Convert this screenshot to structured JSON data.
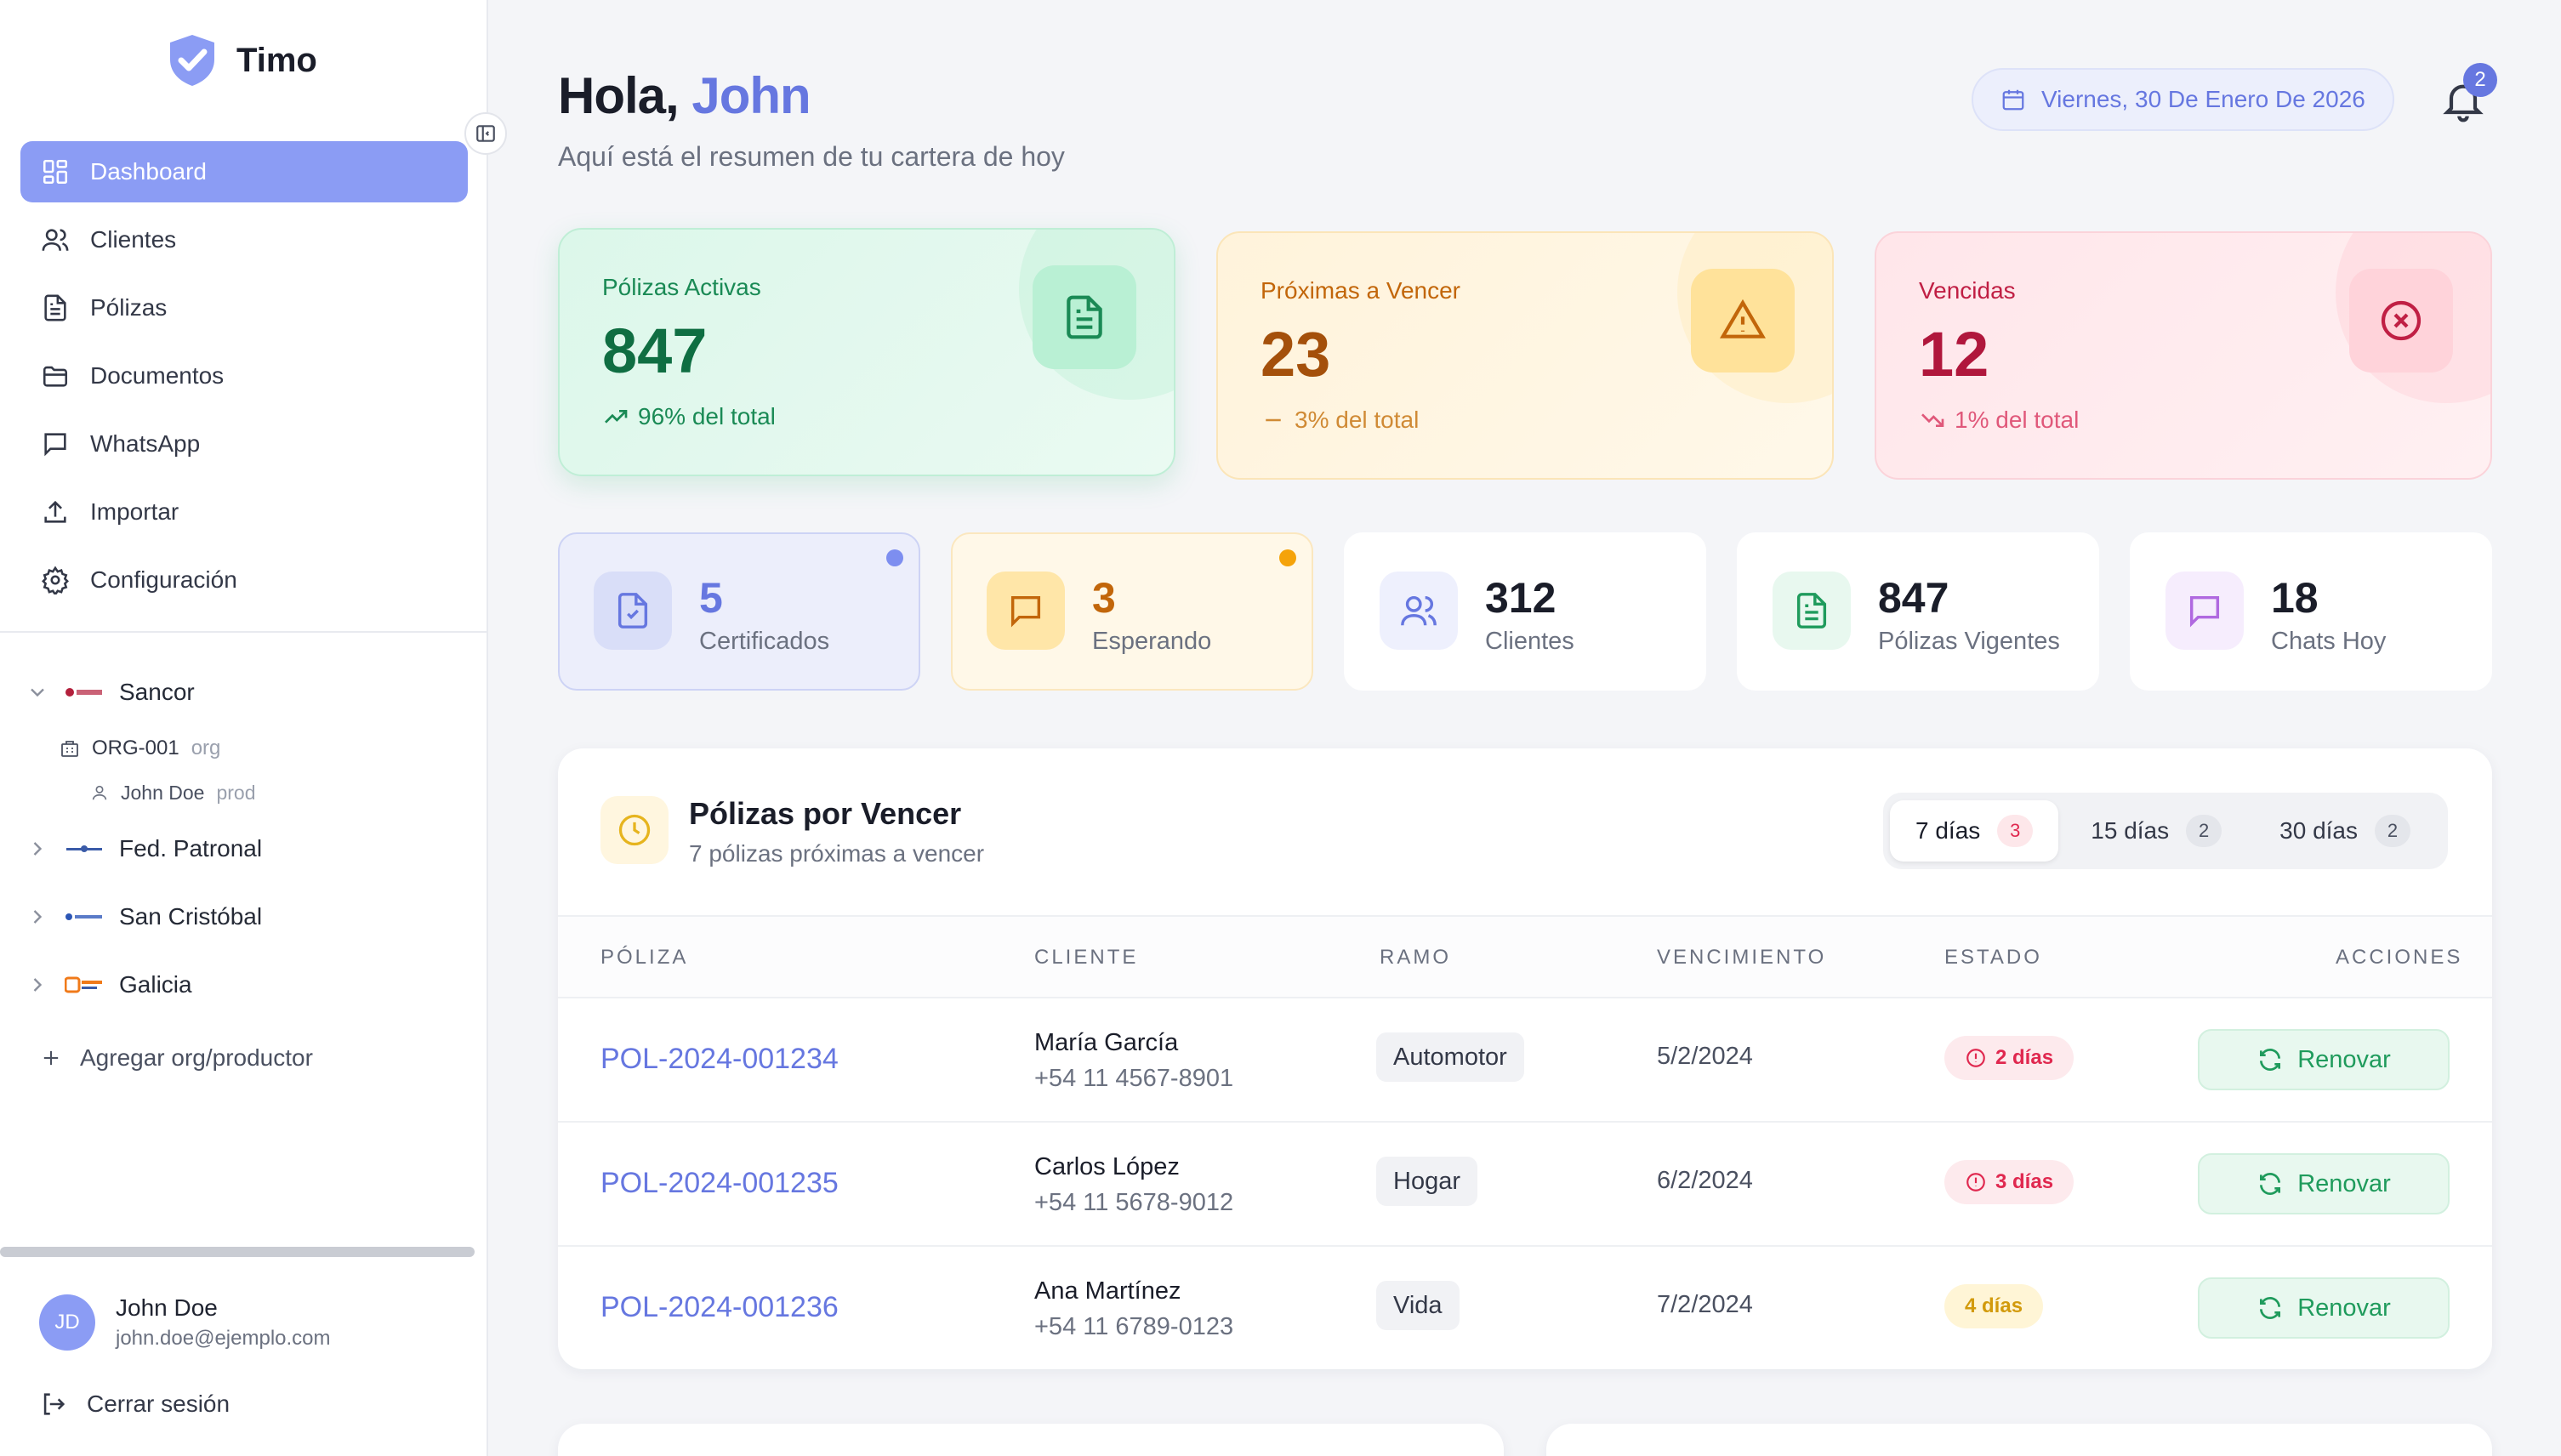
{
  "app": {
    "name": "Timo"
  },
  "nav": [
    {
      "label": "Dashboard",
      "icon": "dashboard-icon",
      "active": true
    },
    {
      "label": "Clientes",
      "icon": "users-icon"
    },
    {
      "label": "Pólizas",
      "icon": "document-icon"
    },
    {
      "label": "Documentos",
      "icon": "folder-icon"
    },
    {
      "label": "WhatsApp",
      "icon": "chat-icon"
    },
    {
      "label": "Importar",
      "icon": "upload-icon"
    },
    {
      "label": "Configuración",
      "icon": "gear-icon"
    }
  ],
  "orgs": [
    {
      "name": "Sancor",
      "expanded": true
    },
    {
      "name": "Fed. Patronal"
    },
    {
      "name": "San Cristóbal"
    },
    {
      "name": "Galicia"
    }
  ],
  "org_child": {
    "code": "ORG-001",
    "tag": "org"
  },
  "producer_child": {
    "name": "John Doe",
    "tag": "prod"
  },
  "add_org_label": "Agregar org/productor",
  "user": {
    "initials": "JD",
    "name": "John Doe",
    "email": "john.doe@ejemplo.com"
  },
  "logout_label": "Cerrar sesión",
  "header": {
    "greeting": "Hola,",
    "name": "John",
    "subtitle": "Aquí está el resumen de tu cartera de hoy",
    "date": "Viernes, 30 De Enero De 2026",
    "notifications": "2"
  },
  "stats": [
    {
      "label": "Pólizas Activas",
      "value": "847",
      "foot": "96% del total",
      "color": "#1a8a55"
    },
    {
      "label": "Próximas a Vencer",
      "value": "23",
      "foot": "3% del total",
      "color": "#c2660a"
    },
    {
      "label": "Vencidas",
      "value": "12",
      "foot": "1% del total",
      "color": "#c01f44"
    }
  ],
  "mini": [
    {
      "value": "5",
      "label": "Certificados"
    },
    {
      "value": "3",
      "label": "Esperando"
    },
    {
      "value": "312",
      "label": "Clientes"
    },
    {
      "value": "847",
      "label": "Pólizas Vigentes"
    },
    {
      "value": "18",
      "label": "Chats Hoy"
    }
  ],
  "expiring": {
    "title": "Pólizas por Vencer",
    "subtitle": "7 pólizas próximas a vencer",
    "tabs": [
      {
        "label": "7 días",
        "count": "3",
        "active": true
      },
      {
        "label": "15 días",
        "count": "2"
      },
      {
        "label": "30 días",
        "count": "2"
      }
    ],
    "columns": [
      "PÓLIZA",
      "CLIENTE",
      "RAMO",
      "VENCIMIENTO",
      "ESTADO",
      "ACCIONES"
    ],
    "rows": [
      {
        "policy": "POL-2024-001234",
        "client": "María García",
        "phone": "+54 11 4567-8901",
        "ramo": "Automotor",
        "due": "5/2/2024",
        "estado": "2 días",
        "level": "red",
        "action": "Renovar"
      },
      {
        "policy": "POL-2024-001235",
        "client": "Carlos López",
        "phone": "+54 11 5678-9012",
        "ramo": "Hogar",
        "due": "6/2/2024",
        "estado": "3 días",
        "level": "red",
        "action": "Renovar"
      },
      {
        "policy": "POL-2024-001236",
        "client": "Ana Martínez",
        "phone": "+54 11 6789-0123",
        "ramo": "Vida",
        "due": "7/2/2024",
        "estado": "4 días",
        "level": "yellow",
        "action": "Renovar"
      }
    ]
  }
}
